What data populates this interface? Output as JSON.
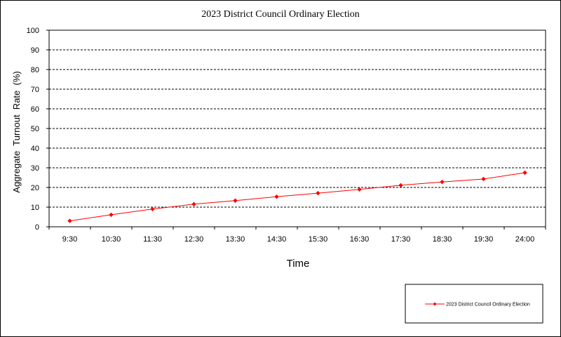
{
  "chart_data": {
    "type": "line",
    "title": "2023 District Council Ordinary Election",
    "xlabel": "Time",
    "ylabel": "Aggregate  Turnout  Rate  (%)",
    "ylim": [
      0,
      100
    ],
    "yticks": [
      "0",
      "10",
      "20",
      "30",
      "40",
      "50",
      "60",
      "70",
      "80",
      "90",
      "100"
    ],
    "categories": [
      "9:30",
      "10:30",
      "11:30",
      "12:30",
      "13:30",
      "14:30",
      "15:30",
      "16:30",
      "17:30",
      "18:30",
      "19:30",
      "24:00"
    ],
    "series": [
      {
        "name": "2023 District Council Ordinary Election",
        "color": "#ff0000",
        "marker": "diamond",
        "values": [
          3.0,
          6.1,
          9.0,
          11.5,
          13.3,
          15.3,
          17.1,
          19.0,
          21.1,
          22.8,
          24.3,
          27.5
        ]
      }
    ],
    "grid": "horizontal-dashed",
    "legend_position": "bottom-right"
  }
}
